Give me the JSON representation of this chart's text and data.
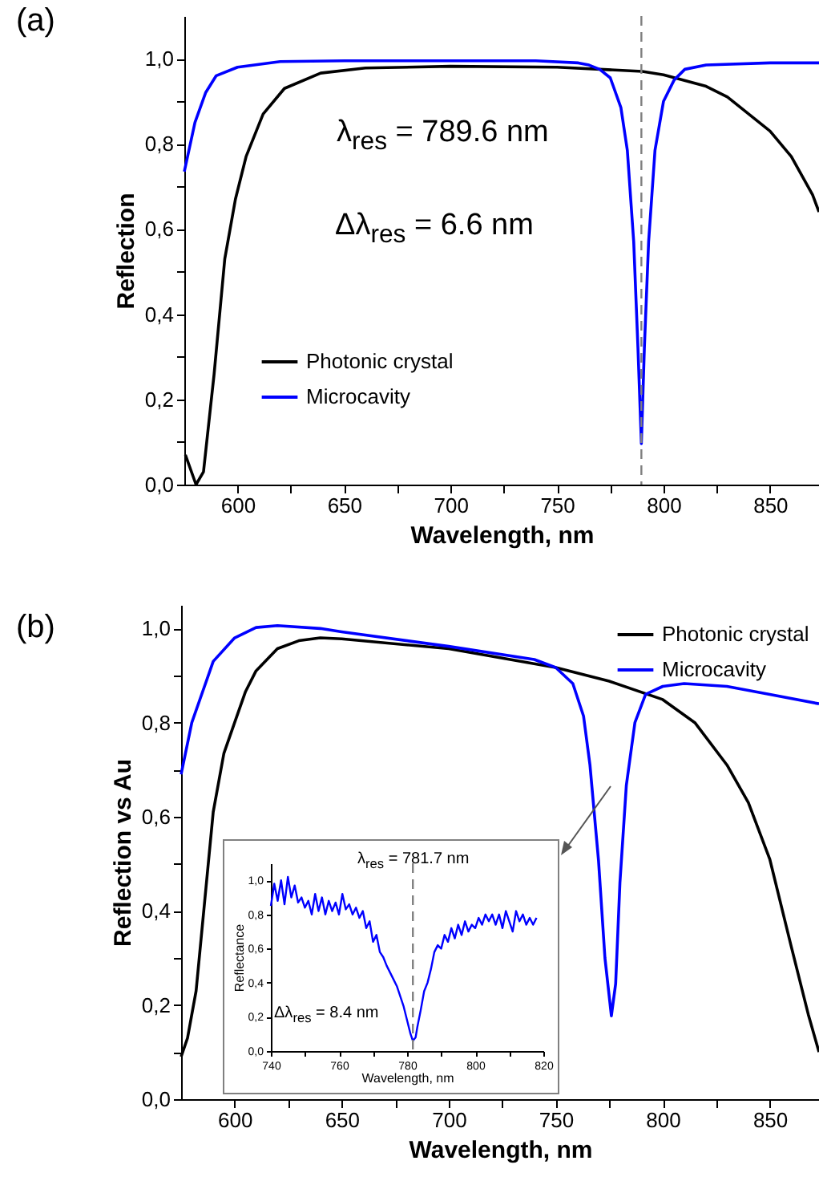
{
  "chart_data": [
    {
      "type": "line",
      "title": "(a)",
      "xlabel": "Wavelength, nm",
      "ylabel": "Reflection",
      "xlim": [
        575,
        873
      ],
      "ylim": [
        0,
        1.1
      ],
      "xticks": [
        600,
        {
          "value": 625,
          "label": null
        },
        650,
        {
          "value": 675,
          "label": null
        },
        700,
        {
          "value": 725,
          "label": null
        },
        750,
        {
          "value": 775,
          "label": null
        },
        800,
        {
          "value": 825,
          "label": null
        },
        850
      ],
      "yticks": [
        {
          "value": 0,
          "label": "0,0"
        },
        {
          "value": 0.1,
          "label": null
        },
        {
          "value": 0.2,
          "label": "0,2"
        },
        {
          "value": 0.3,
          "label": null
        },
        {
          "value": 0.4,
          "label": "0,4"
        },
        {
          "value": 0.5,
          "label": null
        },
        {
          "value": 0.6,
          "label": "0,6"
        },
        {
          "value": 0.7,
          "label": null
        },
        {
          "value": 0.8,
          "label": "0,8"
        },
        {
          "value": 0.9,
          "label": null
        },
        {
          "value": 1.0,
          "label": "1,0"
        }
      ],
      "legend": "bottom left",
      "line_style": "solid",
      "ref_lines": [
        {
          "axis": "x",
          "value": 789.6,
          "color": "#808080",
          "line_style": "dashed"
        }
      ],
      "annotations": [
        "λ$_{res}$ = 789.6 nm",
        "Δλ$_{res}$ = 6.6 nm"
      ],
      "series": [
        {
          "name": "Photonic crystal",
          "color": "#000000",
          "x": [
            575.5,
            580.5,
            584,
            589,
            594,
            599,
            604,
            612,
            622,
            639,
            660,
            700,
            750,
            790,
            800,
            820,
            830,
            840,
            850,
            860,
            870,
            873
          ],
          "values": [
            0.07,
            0.0,
            0.03,
            0.26,
            0.53,
            0.67,
            0.77,
            0.87,
            0.93,
            0.966,
            0.978,
            0.982,
            0.98,
            0.97,
            0.962,
            0.935,
            0.91,
            0.87,
            0.83,
            0.77,
            0.68,
            0.64
          ]
        },
        {
          "name": "Microcavity",
          "color": "#0000ff",
          "x": [
            575,
            580,
            585,
            590,
            600,
            620,
            650,
            700,
            740,
            760,
            765,
            770,
            775,
            780,
            783,
            786,
            788,
            789.6,
            791,
            793,
            796,
            800,
            805,
            810,
            820,
            850,
            873
          ],
          "values": [
            0.735,
            0.85,
            0.92,
            0.96,
            0.98,
            0.993,
            0.995,
            0.995,
            0.995,
            0.99,
            0.985,
            0.975,
            0.955,
            0.885,
            0.785,
            0.57,
            0.32,
            0.096,
            0.32,
            0.57,
            0.785,
            0.9,
            0.95,
            0.975,
            0.985,
            0.99,
            0.99
          ]
        }
      ]
    },
    {
      "type": "line",
      "title": "(b)",
      "xlabel": "Wavelength, nm",
      "ylabel": "Reflection vs Au",
      "xlim": [
        575,
        873
      ],
      "ylim": [
        0,
        1.05
      ],
      "xticks": [
        600,
        {
          "value": 625,
          "label": null
        },
        650,
        {
          "value": 675,
          "label": null
        },
        700,
        {
          "value": 725,
          "label": null
        },
        750,
        {
          "value": 775,
          "label": null
        },
        800,
        {
          "value": 825,
          "label": null
        },
        850
      ],
      "yticks": [
        {
          "value": 0,
          "label": "0,0"
        },
        {
          "value": 0.1,
          "label": null
        },
        {
          "value": 0.2,
          "label": "0,2"
        },
        {
          "value": 0.3,
          "label": null
        },
        {
          "value": 0.4,
          "label": "0,4"
        },
        {
          "value": 0.5,
          "label": null
        },
        {
          "value": 0.6,
          "label": "0,6"
        },
        {
          "value": 0.7,
          "label": null
        },
        {
          "value": 0.8,
          "label": "0,8"
        },
        {
          "value": 0.9,
          "label": null
        },
        {
          "value": 1.0,
          "label": "1,0"
        }
      ],
      "legend": "top right",
      "line_style": "solid",
      "series": [
        {
          "name": "Photonic crystal",
          "color": "#000000",
          "x": [
            575,
            578,
            582,
            586,
            590,
            595,
            600,
            605,
            610,
            620,
            630,
            640,
            650,
            700,
            750,
            775,
            800,
            815,
            830,
            840,
            850,
            860,
            868,
            873
          ],
          "values": [
            0.09,
            0.13,
            0.23,
            0.42,
            0.61,
            0.735,
            0.8,
            0.865,
            0.91,
            0.957,
            0.974,
            0.98,
            0.978,
            0.957,
            0.917,
            0.888,
            0.849,
            0.8,
            0.71,
            0.63,
            0.51,
            0.325,
            0.18,
            0.1
          ]
        },
        {
          "name": "Microcavity",
          "color": "#0000ff",
          "x": [
            575,
            580,
            590,
            600,
            610,
            620,
            640,
            650,
            700,
            740,
            750,
            758,
            763,
            766,
            770,
            773,
            776,
            778,
            780,
            783,
            787,
            792,
            800,
            810,
            830,
            850,
            873
          ],
          "values": [
            0.69,
            0.8,
            0.93,
            0.98,
            1.002,
            1.006,
            1.0,
            0.993,
            0.962,
            0.934,
            0.917,
            0.883,
            0.814,
            0.71,
            0.507,
            0.3,
            0.177,
            0.245,
            0.46,
            0.667,
            0.8,
            0.86,
            0.877,
            0.883,
            0.877,
            0.86,
            0.84
          ]
        }
      ]
    },
    {
      "type": "line",
      "xlabel": "Wavelength, nm",
      "ylabel": "Reflectance",
      "xlim": [
        740,
        820
      ],
      "ylim": [
        0,
        1.1
      ],
      "xticks": [
        740,
        {
          "value": 750,
          "label": null
        },
        760,
        {
          "value": 770,
          "label": null
        },
        780,
        {
          "value": 790,
          "label": null
        },
        800,
        {
          "value": 810,
          "label": null
        },
        820
      ],
      "yticks": [
        {
          "value": 0,
          "label": "0,0"
        },
        {
          "value": 0.2,
          "label": "0,2"
        },
        {
          "value": 0.4,
          "label": "0,4"
        },
        {
          "value": 0.6,
          "label": "0,6"
        },
        {
          "value": 0.8,
          "label": "0,8"
        },
        {
          "value": 1.0,
          "label": "1,0"
        }
      ],
      "line_style": "solid",
      "ref_lines": [
        {
          "axis": "x",
          "value": 781.7,
          "color": "#808080",
          "line_style": "dashed"
        }
      ],
      "annotations": [
        "λ$_{res}$ = 781.7 nm",
        "Δλ$_{res}$ = 8.4 nm"
      ],
      "series": [
        {
          "color": "#0000ff",
          "x": [
            740,
            741,
            742,
            743,
            744,
            745,
            746,
            747,
            748,
            749,
            750,
            751,
            752,
            753,
            754,
            755,
            756,
            757,
            758,
            759,
            760,
            761,
            762,
            763,
            764,
            765,
            766,
            767,
            768,
            769,
            770,
            771,
            772,
            773,
            774,
            775,
            776,
            777,
            778,
            779,
            780,
            781,
            781.7,
            782.5,
            783,
            784,
            785,
            786,
            787,
            788,
            789,
            790,
            791,
            792,
            793,
            794,
            795,
            796,
            797,
            798,
            799,
            800,
            801,
            802,
            803,
            804,
            805,
            806,
            807,
            808,
            809,
            810,
            811,
            812,
            813,
            814,
            815,
            816,
            817,
            818
          ],
          "values": [
            0.85,
            0.98,
            0.88,
            1.0,
            0.86,
            1.02,
            0.9,
            0.97,
            0.87,
            0.9,
            0.84,
            0.88,
            0.8,
            0.92,
            0.82,
            0.9,
            0.8,
            0.88,
            0.82,
            0.87,
            0.8,
            0.92,
            0.83,
            0.86,
            0.8,
            0.84,
            0.78,
            0.82,
            0.72,
            0.76,
            0.64,
            0.68,
            0.58,
            0.55,
            0.5,
            0.46,
            0.42,
            0.38,
            0.32,
            0.26,
            0.18,
            0.1,
            0.06,
            0.08,
            0.14,
            0.24,
            0.35,
            0.4,
            0.48,
            0.58,
            0.62,
            0.6,
            0.68,
            0.64,
            0.72,
            0.66,
            0.74,
            0.68,
            0.76,
            0.7,
            0.74,
            0.72,
            0.78,
            0.74,
            0.8,
            0.76,
            0.8,
            0.74,
            0.8,
            0.72,
            0.82,
            0.76,
            0.7,
            0.82,
            0.76,
            0.8,
            0.74,
            0.78,
            0.74,
            0.78
          ]
        }
      ]
    }
  ]
}
